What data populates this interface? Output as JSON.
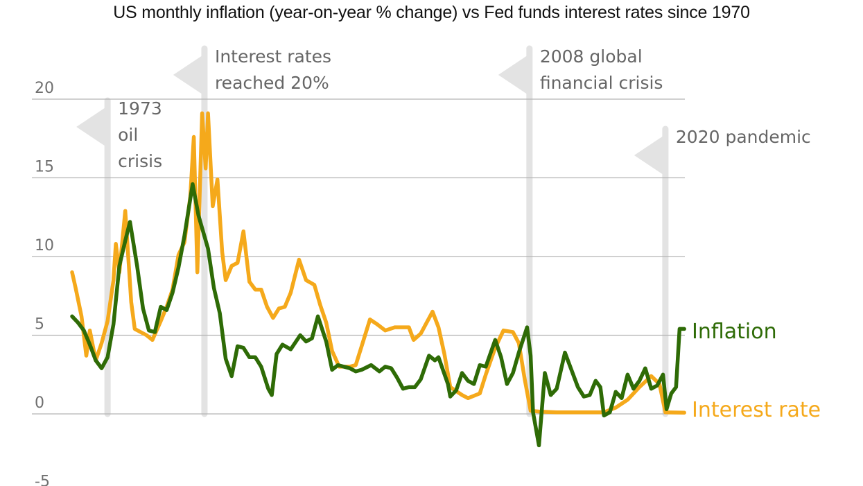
{
  "title": "US monthly inflation (year-on-year % change) vs Fed funds interest rates since 1970",
  "colors": {
    "inflation": "#2e6b06",
    "interest_rate": "#f5a91b",
    "gridline": "#b3b3b3",
    "flag": "#e3e3e3",
    "tick_text": "#6f6f6f",
    "annotation_text": "#666666"
  },
  "y_axis": {
    "ticks": [
      "20",
      "15",
      "10",
      "5",
      "0",
      "-5"
    ]
  },
  "annotations": [
    {
      "label_lines": [
        "1973",
        "oil",
        "crisis"
      ],
      "year": 1973.0
    },
    {
      "label_lines": [
        "Interest rates",
        "reached 20%"
      ],
      "year": 1981.2
    },
    {
      "label_lines": [
        "2008 global",
        "financial crisis"
      ],
      "year": 2008.7
    },
    {
      "label_lines": [
        "2020 pandemic"
      ],
      "year": 2020.2
    }
  ],
  "legend": {
    "inflation_label": "Inflation",
    "interest_label": "Interest rate"
  },
  "chart_data": {
    "type": "line",
    "title": "US monthly inflation (year-on-year % change) vs Fed funds interest rates since 1970",
    "xlabel": "",
    "ylabel": "",
    "xlim": [
      1970,
      2021.8
    ],
    "ylim": [
      -5,
      20
    ],
    "yticks": [
      -5,
      0,
      5,
      10,
      15,
      20
    ],
    "grid": true,
    "legend_position": "inline-right",
    "series": [
      {
        "name": "Inflation",
        "color": "#2e6b06",
        "x": [
          1970,
          1970.5,
          1971,
          1971.5,
          1972,
          1972.5,
          1973,
          1973.5,
          1974,
          1974.5,
          1974.9,
          1975.5,
          1976,
          1976.5,
          1977,
          1977.5,
          1978,
          1978.5,
          1979,
          1979.5,
          1980.2,
          1980.7,
          1981,
          1981.5,
          1982,
          1982.5,
          1983,
          1983.5,
          1984,
          1984.5,
          1985,
          1985.5,
          1986,
          1986.6,
          1986.9,
          1987.3,
          1987.8,
          1988.5,
          1989.3,
          1989.8,
          1990.3,
          1990.8,
          1991.5,
          1992,
          1992.5,
          1993.5,
          1994,
          1994.5,
          1995.3,
          1996,
          1996.5,
          1997,
          1997.5,
          1998,
          1998.5,
          1999,
          1999.5,
          2000.2,
          2000.7,
          2001,
          2001.8,
          2002,
          2002.5,
          2003,
          2003.5,
          2004,
          2004.5,
          2005,
          2005.8,
          2006.3,
          2006.8,
          2007.3,
          2007.8,
          2008.5,
          2008.8,
          2009.0,
          2009.5,
          2010,
          2010.5,
          2011,
          2011.7,
          2012.3,
          2012.8,
          2013.3,
          2013.8,
          2014.3,
          2014.7,
          2015,
          2015.5,
          2016,
          2016.5,
          2017,
          2017.5,
          2018,
          2018.5,
          2019,
          2019.5,
          2020,
          2020.3,
          2020.7,
          2021.1,
          2021.4,
          2021.8
        ],
        "values": [
          6.2,
          5.8,
          5.3,
          4.4,
          3.4,
          2.9,
          3.6,
          5.7,
          9.4,
          11.0,
          12.2,
          9.4,
          6.7,
          5.3,
          5.2,
          6.8,
          6.6,
          7.7,
          9.3,
          11.3,
          14.6,
          12.6,
          11.8,
          10.5,
          8.0,
          6.4,
          3.5,
          2.4,
          4.3,
          4.2,
          3.6,
          3.6,
          3.0,
          1.6,
          1.2,
          3.8,
          4.4,
          4.1,
          5.0,
          4.6,
          4.8,
          6.2,
          4.6,
          2.8,
          3.1,
          2.9,
          2.7,
          2.8,
          3.1,
          2.7,
          3.0,
          2.9,
          2.3,
          1.6,
          1.7,
          1.7,
          2.2,
          3.7,
          3.4,
          3.6,
          1.9,
          1.1,
          1.5,
          2.6,
          2.1,
          1.9,
          3.1,
          3.0,
          4.7,
          3.6,
          1.9,
          2.6,
          3.9,
          5.5,
          3.7,
          0.1,
          -2.0,
          2.6,
          1.2,
          1.6,
          3.9,
          2.7,
          1.7,
          1.1,
          1.2,
          2.1,
          1.7,
          -0.1,
          0.1,
          1.4,
          1.0,
          2.5,
          1.6,
          2.1,
          2.9,
          1.6,
          1.8,
          2.5,
          0.3,
          1.3,
          1.7,
          5.4,
          5.4
        ]
      },
      {
        "name": "Interest rate",
        "color": "#f5a91b",
        "x": [
          1970,
          1970.3,
          1970.8,
          1971.2,
          1971.5,
          1972,
          1972.5,
          1973,
          1973.5,
          1973.7,
          1974,
          1974.5,
          1975,
          1975.3,
          1975.8,
          1976.3,
          1976.8,
          1977.5,
          1978,
          1978.5,
          1979,
          1979.5,
          1980,
          1980.3,
          1980.6,
          1981,
          1981.3,
          1981.5,
          1981.9,
          1982.3,
          1982.7,
          1983,
          1983.5,
          1984,
          1984.5,
          1985,
          1985.5,
          1986,
          1986.5,
          1987,
          1987.5,
          1988,
          1988.5,
          1989.2,
          1989.8,
          1990.5,
          1991,
          1991.5,
          1992,
          1992.6,
          1993.5,
          1994,
          1994.5,
          1995.2,
          1995.8,
          1996.5,
          1997.3,
          1998,
          1998.5,
          1998.9,
          1999.5,
          2000.5,
          2001,
          2001.5,
          2002,
          2003,
          2003.5,
          2004.5,
          2005,
          2005.8,
          2006.5,
          2007.3,
          2007.8,
          2008.3,
          2008.8,
          2009.5,
          2011,
          2013,
          2015,
          2016,
          2017,
          2018,
          2019,
          2019.7,
          2020.2,
          2021.8
        ],
        "values": [
          9.0,
          8.0,
          6.2,
          3.7,
          5.3,
          3.4,
          4.5,
          5.9,
          8.5,
          10.8,
          9.0,
          12.9,
          7.1,
          5.4,
          5.2,
          5.0,
          4.7,
          5.9,
          6.8,
          7.9,
          10.1,
          10.9,
          13.8,
          17.6,
          9.0,
          19.1,
          15.6,
          19.1,
          13.2,
          14.9,
          10.3,
          8.5,
          9.4,
          9.6,
          11.6,
          8.4,
          7.9,
          7.9,
          6.8,
          6.1,
          6.7,
          6.8,
          7.7,
          9.8,
          8.5,
          8.2,
          6.9,
          5.8,
          4.0,
          3.0,
          3.0,
          3.1,
          4.3,
          6.0,
          5.7,
          5.3,
          5.5,
          5.5,
          5.5,
          4.7,
          5.1,
          6.5,
          5.5,
          3.8,
          1.7,
          1.2,
          1.0,
          1.3,
          2.5,
          4.2,
          5.3,
          5.2,
          4.5,
          2.2,
          0.2,
          0.15,
          0.1,
          0.1,
          0.1,
          0.4,
          0.9,
          1.7,
          2.4,
          1.9,
          0.1,
          0.08
        ]
      }
    ]
  }
}
